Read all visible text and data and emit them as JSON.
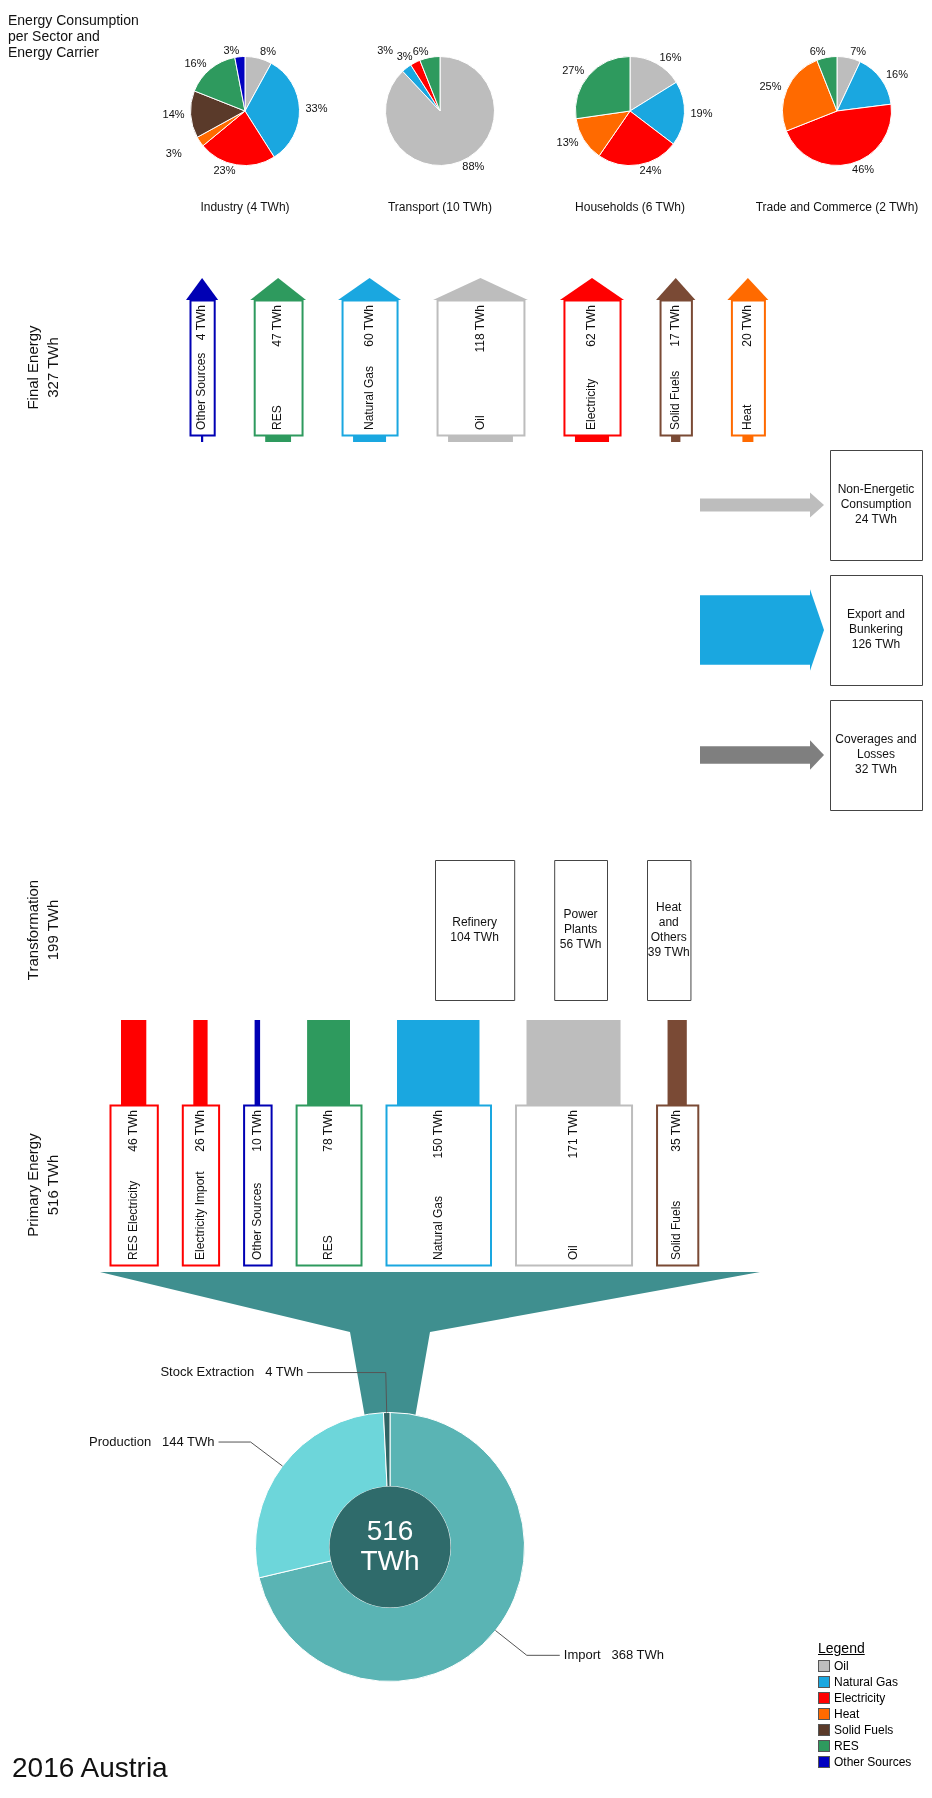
{
  "chart_data": [
    {
      "type": "other",
      "title": "Primary Energy",
      "subtitle": "516 TWh",
      "categories": [
        "RES Electricity",
        "Electricity Import",
        "Other Sources",
        "RES",
        "Natural Gas",
        "Oil",
        "Solid Fuels"
      ],
      "values": [
        46,
        26,
        10,
        78,
        150,
        171,
        35
      ],
      "value_labels": [
        "46 TWh",
        "26 TWh",
        "10 TWh",
        "78 TWh",
        "150 TWh",
        "171 TWh",
        "35 TWh"
      ],
      "colors": [
        "#ff0000",
        "#ff0000",
        "#0000b4",
        "#2e9a5e",
        "#1aa7e0",
        "#bdbdbd",
        "#7a4a35"
      ]
    },
    {
      "type": "other",
      "title": "Transformation",
      "subtitle": "199 TWh",
      "categories": [
        "Refinery",
        "Power Plants",
        "Heat and Others"
      ],
      "values": [
        104,
        56,
        39
      ],
      "value_labels": [
        "104 TWh",
        "56 TWh",
        "39 TWh"
      ],
      "colors": [
        "#bdbdbd",
        "#ff6a00",
        "#7a4a35"
      ]
    },
    {
      "type": "other",
      "categories": [
        "Non-Energetic Consumption",
        "Export and Bunkering",
        "Coverages and Losses"
      ],
      "values": [
        24,
        126,
        32
      ],
      "value_labels": [
        "24 TWh",
        "126 TWh",
        "32 TWh"
      ],
      "colors": [
        "#bdbdbd",
        "#1aa7e0",
        "#7f7f7f"
      ]
    },
    {
      "type": "other",
      "title": "Final Energy",
      "subtitle": "327 TWh",
      "categories": [
        "Other Sources",
        "RES",
        "Natural Gas",
        "Oil",
        "Electricity",
        "Solid Fuels",
        "Heat"
      ],
      "values": [
        4,
        47,
        60,
        118,
        62,
        17,
        20
      ],
      "value_labels": [
        "4 TWh",
        "47 TWh",
        "60 TWh",
        "118 TWh",
        "62 TWh",
        "17 TWh",
        "20 TWh"
      ],
      "colors": [
        "#0000b4",
        "#2e9a5e",
        "#1aa7e0",
        "#bdbdbd",
        "#ff0000",
        "#7a4a35",
        "#ff6a00"
      ]
    },
    {
      "type": "donut",
      "title": "2016 Austria",
      "annotations": [
        "516\nTWh"
      ],
      "categories": [
        "Import",
        "Production",
        "Stock Extraction"
      ],
      "values": [
        368,
        144,
        4
      ],
      "value_labels": [
        "368 TWh",
        "144 TWh",
        "4 TWh"
      ],
      "colors": [
        "#5ab4b4",
        "#6dd6da",
        "#2f6464"
      ]
    },
    {
      "type": "pie",
      "title": "Industry (4 TWh)",
      "annotations": [
        "Energy Consumption per Sector and Energy Carrier"
      ],
      "legend": "bottom right",
      "legend_title": "Legend",
      "categories": [
        "Oil",
        "Natural Gas",
        "Electricity",
        "Heat",
        "Solid Fuels",
        "RES",
        "Other Sources"
      ],
      "values": [
        8,
        33,
        23,
        3,
        14,
        16,
        3
      ],
      "value_labels": [
        "8%",
        "33%",
        "23%",
        "3%",
        "14%",
        "16%",
        "3%"
      ],
      "colors": [
        "#bdbdbd",
        "#1aa7e0",
        "#ff0000",
        "#ff6a00",
        "#5a3a2a",
        "#2e9a5e",
        "#0000c0"
      ]
    },
    {
      "type": "pie",
      "title": "Transport (10 TWh)",
      "categories": [
        null,
        null,
        null,
        null
      ],
      "values": [
        88,
        3,
        3,
        6
      ],
      "value_labels": [
        "88%",
        "3%",
        "3%",
        "6%"
      ],
      "colors": [
        "#bdbdbd",
        "#1aa7e0",
        "#ff0000",
        "#2e9a5e"
      ]
    },
    {
      "type": "pie",
      "title": "Households (6 TWh)",
      "categories": [
        null,
        null,
        null,
        null,
        null
      ],
      "values": [
        16,
        19,
        24,
        13,
        27
      ],
      "value_labels": [
        "16%",
        "19%",
        "24%",
        "13%",
        "27%"
      ],
      "colors": [
        "#bdbdbd",
        "#1aa7e0",
        "#ff0000",
        "#ff6a00",
        "#2e9a5e"
      ]
    },
    {
      "type": "pie",
      "title": "Trade and Commerce (2 TWh)",
      "categories": [
        null,
        null,
        null,
        null,
        null
      ],
      "values": [
        7,
        16,
        46,
        25,
        6
      ],
      "value_labels": [
        "7%",
        "16%",
        "46%",
        "25%",
        "6%"
      ],
      "colors": [
        "#bdbdbd",
        "#1aa7e0",
        "#ff0000",
        "#ff6a00",
        "#2e9a5e"
      ]
    }
  ]
}
